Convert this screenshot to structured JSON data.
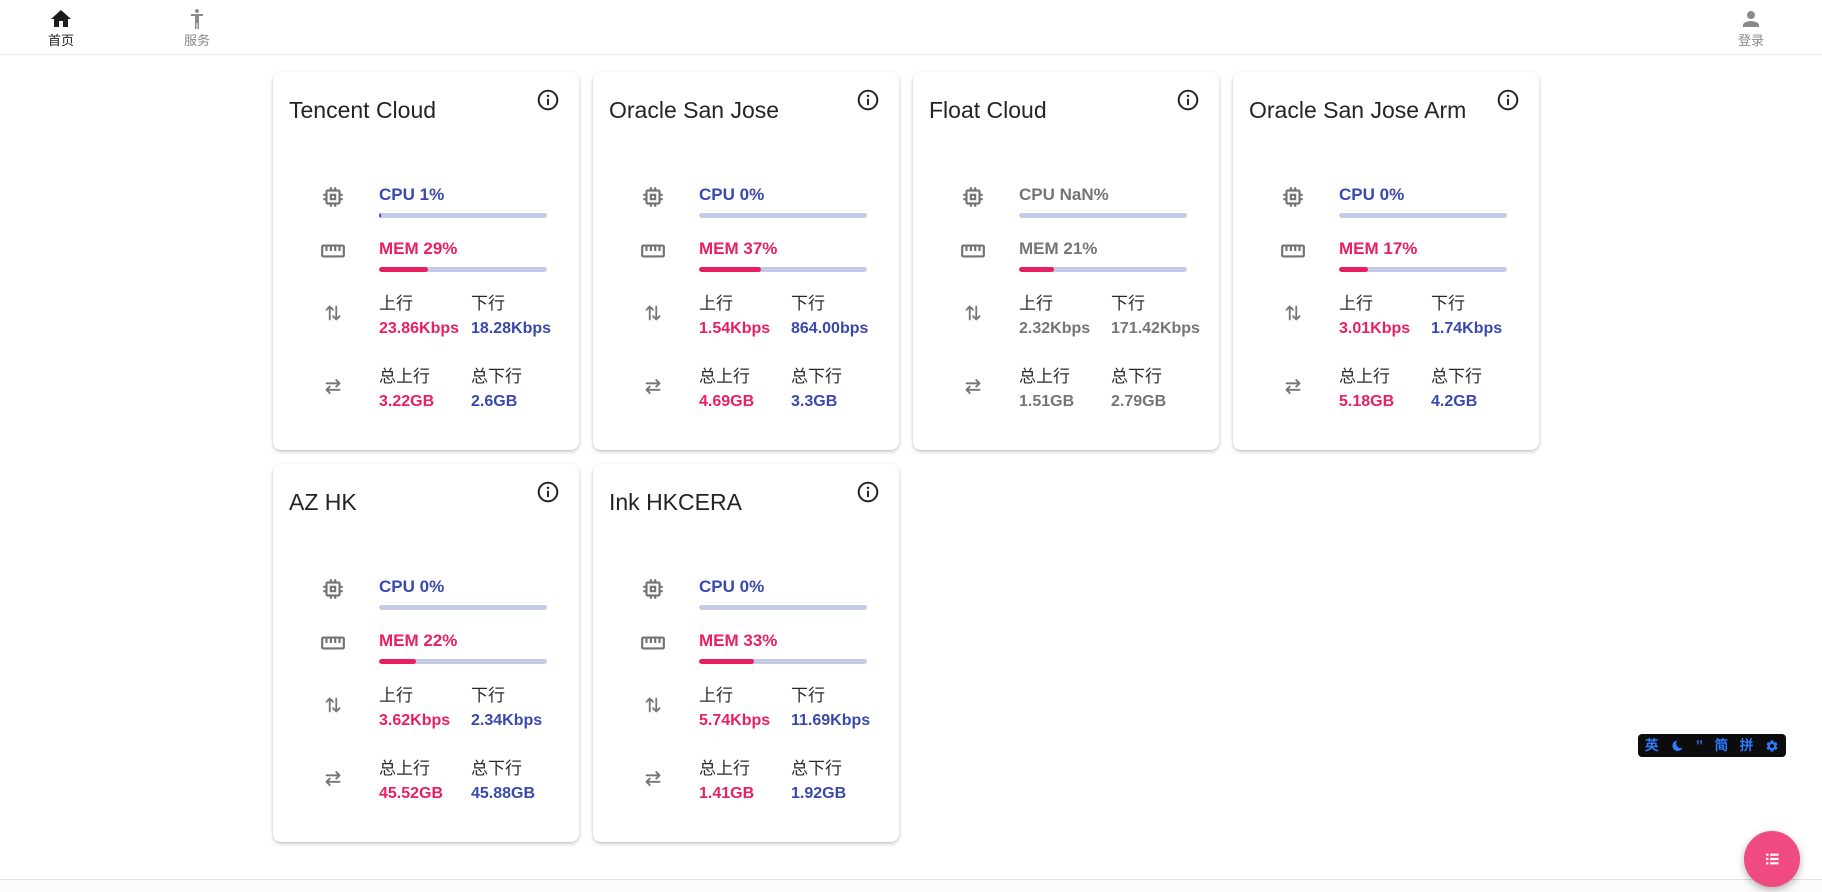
{
  "nav": {
    "home": {
      "label": "首页"
    },
    "service": {
      "label": "服务"
    },
    "login": {
      "label": "登录"
    }
  },
  "labels": {
    "up": "上行",
    "down": "下行",
    "total_up": "总上行",
    "total_down": "总下行"
  },
  "servers": [
    {
      "name": "Tencent Cloud",
      "cpu_text": "CPU 1%",
      "cpu_pct": 1,
      "mem_text": "MEM 29%",
      "mem_pct": 29,
      "muted": false,
      "up": "23.86Kbps",
      "down": "18.28Kbps",
      "total_up": "3.22GB",
      "total_down": "2.6GB"
    },
    {
      "name": "Oracle San Jose",
      "cpu_text": "CPU 0%",
      "cpu_pct": 0,
      "mem_text": "MEM 37%",
      "mem_pct": 37,
      "muted": false,
      "up": "1.54Kbps",
      "down": "864.00bps",
      "total_up": "4.69GB",
      "total_down": "3.3GB"
    },
    {
      "name": "Float Cloud",
      "cpu_text": "CPU NaN%",
      "cpu_pct": 0,
      "mem_text": "MEM 21%",
      "mem_pct": 21,
      "muted": true,
      "up": "2.32Kbps",
      "down": "171.42Kbps",
      "total_up": "1.51GB",
      "total_down": "2.79GB"
    },
    {
      "name": "Oracle San Jose Arm",
      "cpu_text": "CPU 0%",
      "cpu_pct": 0,
      "mem_text": "MEM 17%",
      "mem_pct": 17,
      "muted": false,
      "up": "3.01Kbps",
      "down": "1.74Kbps",
      "total_up": "5.18GB",
      "total_down": "4.2GB"
    },
    {
      "name": "AZ HK",
      "cpu_text": "CPU 0%",
      "cpu_pct": 0,
      "mem_text": "MEM 22%",
      "mem_pct": 22,
      "muted": false,
      "up": "3.62Kbps",
      "down": "2.34Kbps",
      "total_up": "45.52GB",
      "total_down": "45.88GB"
    },
    {
      "name": "Ink HKCERA",
      "cpu_text": "CPU 0%",
      "cpu_pct": 0,
      "mem_text": "MEM 33%",
      "mem_pct": 33,
      "muted": false,
      "up": "5.74Kbps",
      "down": "11.69Kbps",
      "total_up": "1.41GB",
      "total_down": "1.92GB"
    }
  ],
  "ime": {
    "english": "英",
    "punct": "’’",
    "simplified": "简",
    "pinyin": "拼"
  },
  "colors": {
    "accent_blue": "#3949ab",
    "accent_pink": "#e91e63",
    "bar_track": "#c5cae9",
    "muted_text": "#757575",
    "fab_pink": "#f04b80",
    "ime_icon_blue": "#2b7cff"
  }
}
